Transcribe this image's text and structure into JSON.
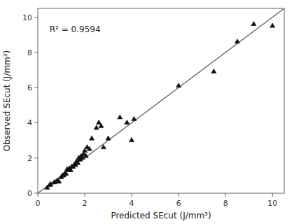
{
  "chart_data": {
    "type": "scatter",
    "xlabel": "Predicted SEcut (J/mm³)",
    "ylabel": "Observed SEcut (J/mm³)",
    "xlim": [
      0,
      10.5
    ],
    "ylim": [
      0,
      10.5
    ],
    "xticks": [
      0,
      2,
      4,
      6,
      8,
      10
    ],
    "yticks": [
      0,
      2,
      4,
      6,
      8,
      10
    ],
    "grid": false,
    "series": [
      {
        "type": "line",
        "color": "#555555",
        "line_style": "solid",
        "x": [
          0,
          10.5
        ],
        "values": [
          0,
          10.5
        ]
      },
      {
        "type": "scatter",
        "color": "#111111",
        "marker": "triangle",
        "x": [
          0.4,
          0.5,
          0.55,
          0.7,
          0.8,
          0.85,
          0.9,
          1.0,
          1.05,
          1.1,
          1.15,
          1.2,
          1.25,
          1.3,
          1.35,
          1.4,
          1.45,
          1.5,
          1.55,
          1.6,
          1.65,
          1.7,
          1.75,
          1.8,
          1.85,
          1.9,
          1.95,
          2.0,
          2.05,
          2.1,
          2.2,
          2.3,
          2.5,
          2.6,
          2.7,
          2.8,
          3.0,
          3.5,
          3.8,
          4.0,
          4.1,
          6.0,
          7.5,
          8.5,
          9.2,
          10.0
        ],
        "values": [
          0.3,
          0.45,
          0.5,
          0.6,
          0.65,
          0.7,
          0.65,
          0.9,
          1.0,
          1.0,
          1.1,
          1.1,
          1.35,
          1.3,
          1.4,
          1.3,
          1.5,
          1.5,
          1.6,
          1.6,
          1.8,
          1.7,
          2.0,
          1.9,
          2.1,
          2.0,
          2.2,
          2.4,
          2.1,
          2.6,
          2.5,
          3.1,
          3.7,
          4.0,
          3.8,
          2.6,
          3.1,
          4.3,
          4.0,
          3.0,
          4.2,
          6.1,
          6.9,
          8.6,
          9.6,
          9.5
        ]
      }
    ],
    "annotations": [
      {
        "text": "R² = 0.9594",
        "x": 0.5,
        "y": 9.5
      }
    ]
  }
}
